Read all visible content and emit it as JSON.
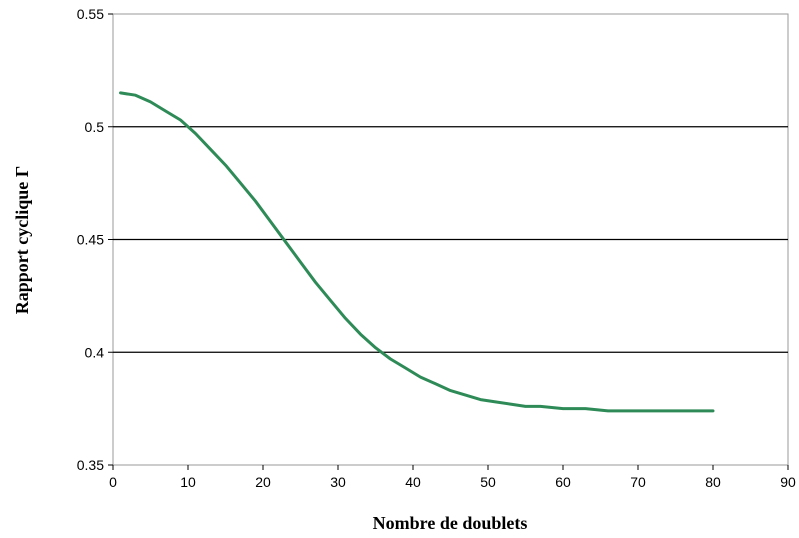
{
  "chart_data": {
    "type": "line",
    "xlabel": "Nombre de doublets",
    "ylabel": "Rapport cyclique Γ",
    "xlim": [
      0,
      90
    ],
    "ylim": [
      0.35,
      0.55
    ],
    "x_ticks": [
      "0",
      "10",
      "20",
      "30",
      "40",
      "50",
      "60",
      "70",
      "80",
      "90"
    ],
    "y_ticks": [
      "0.35",
      "0.4",
      "0.45",
      "0.5",
      "0.55"
    ],
    "grid": "horizontal",
    "series_color": "#2e8b57",
    "series": [
      {
        "x": [
          1,
          3,
          5,
          7,
          9,
          11,
          13,
          15,
          17,
          19,
          21,
          23,
          25,
          27,
          29,
          31,
          33,
          35,
          37,
          39,
          41,
          43,
          45,
          47,
          49,
          51,
          53,
          55,
          57,
          60,
          63,
          66,
          69,
          72,
          75,
          78,
          80
        ],
        "values": [
          0.515,
          0.514,
          0.511,
          0.507,
          0.503,
          0.497,
          0.49,
          0.483,
          0.475,
          0.467,
          0.458,
          0.449,
          0.44,
          0.431,
          0.423,
          0.415,
          0.408,
          0.402,
          0.397,
          0.393,
          0.389,
          0.386,
          0.383,
          0.381,
          0.379,
          0.378,
          0.377,
          0.376,
          0.376,
          0.375,
          0.375,
          0.374,
          0.374,
          0.374,
          0.374,
          0.374,
          0.374
        ]
      }
    ]
  }
}
